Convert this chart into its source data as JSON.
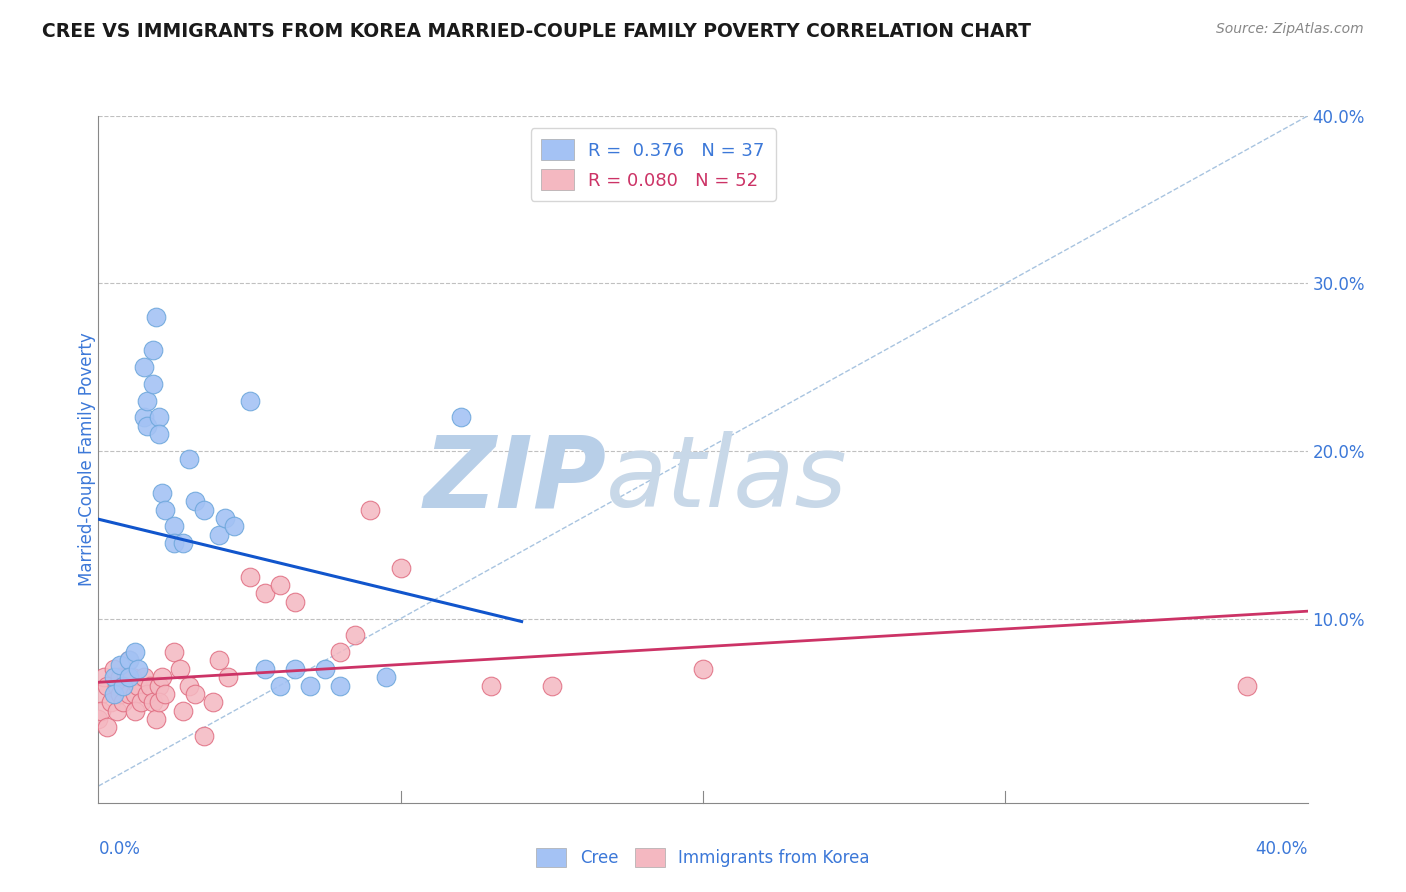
{
  "title": "CREE VS IMMIGRANTS FROM KOREA MARRIED-COUPLE FAMILY POVERTY CORRELATION CHART",
  "source": "Source: ZipAtlas.com",
  "ylabel": "Married-Couple Family Poverty",
  "xlim": [
    0.0,
    0.4
  ],
  "ylim": [
    -0.01,
    0.4
  ],
  "cree_R": 0.376,
  "cree_N": 37,
  "korea_R": 0.08,
  "korea_N": 52,
  "cree_color": "#a4c2f4",
  "korea_color": "#f4b8c1",
  "cree_edge_color": "#6fa8dc",
  "korea_edge_color": "#e06c80",
  "cree_line_color": "#1155cc",
  "korea_line_color": "#cc3366",
  "ref_line_color": "#a8c4e0",
  "background_color": "#ffffff",
  "grid_color": "#c0c0c0",
  "watermark_zip": "ZIP",
  "watermark_atlas": "atlas",
  "watermark_color": "#dce8f5",
  "title_color": "#1a1a1a",
  "axis_label_color": "#3c78d8",
  "cree_x": [
    0.005,
    0.005,
    0.007,
    0.008,
    0.01,
    0.01,
    0.012,
    0.013,
    0.015,
    0.015,
    0.016,
    0.016,
    0.018,
    0.018,
    0.019,
    0.02,
    0.02,
    0.021,
    0.022,
    0.025,
    0.025,
    0.028,
    0.03,
    0.032,
    0.035,
    0.04,
    0.042,
    0.045,
    0.05,
    0.055,
    0.06,
    0.065,
    0.07,
    0.075,
    0.08,
    0.095,
    0.12
  ],
  "cree_y": [
    0.065,
    0.055,
    0.072,
    0.06,
    0.075,
    0.065,
    0.08,
    0.07,
    0.25,
    0.22,
    0.23,
    0.215,
    0.26,
    0.24,
    0.28,
    0.22,
    0.21,
    0.175,
    0.165,
    0.155,
    0.145,
    0.145,
    0.195,
    0.17,
    0.165,
    0.15,
    0.16,
    0.155,
    0.23,
    0.07,
    0.06,
    0.07,
    0.06,
    0.07,
    0.06,
    0.065,
    0.22
  ],
  "korea_x": [
    0.0,
    0.001,
    0.001,
    0.002,
    0.003,
    0.003,
    0.004,
    0.005,
    0.006,
    0.006,
    0.007,
    0.007,
    0.008,
    0.008,
    0.009,
    0.01,
    0.01,
    0.011,
    0.012,
    0.012,
    0.013,
    0.014,
    0.015,
    0.016,
    0.017,
    0.018,
    0.019,
    0.02,
    0.02,
    0.021,
    0.022,
    0.025,
    0.027,
    0.028,
    0.03,
    0.032,
    0.035,
    0.038,
    0.04,
    0.043,
    0.05,
    0.055,
    0.06,
    0.065,
    0.08,
    0.085,
    0.09,
    0.1,
    0.13,
    0.15,
    0.2,
    0.38
  ],
  "korea_y": [
    0.04,
    0.055,
    0.045,
    0.065,
    0.035,
    0.06,
    0.05,
    0.07,
    0.06,
    0.045,
    0.065,
    0.055,
    0.06,
    0.05,
    0.065,
    0.075,
    0.055,
    0.065,
    0.055,
    0.045,
    0.06,
    0.05,
    0.065,
    0.055,
    0.06,
    0.05,
    0.04,
    0.06,
    0.05,
    0.065,
    0.055,
    0.08,
    0.07,
    0.045,
    0.06,
    0.055,
    0.03,
    0.05,
    0.075,
    0.065,
    0.125,
    0.115,
    0.12,
    0.11,
    0.08,
    0.09,
    0.165,
    0.13,
    0.06,
    0.06,
    0.07,
    0.06
  ]
}
